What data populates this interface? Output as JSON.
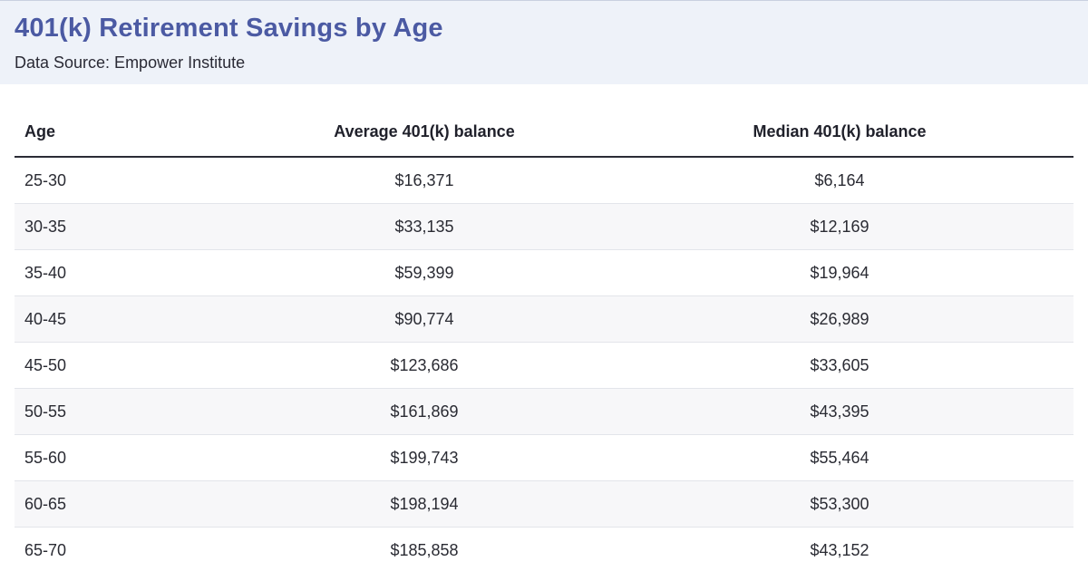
{
  "header": {
    "title": "401(k) Retirement Savings by Age",
    "subtitle": "Data Source: Empower Institute"
  },
  "chart_data": {
    "type": "table",
    "title": "401(k) Retirement Savings by Age",
    "subtitle": "Data Source: Empower Institute",
    "columns": [
      "Age",
      "Average 401(k) balance",
      "Median 401(k) balance"
    ],
    "rows": [
      [
        "25-30",
        "$16,371",
        "$6,164"
      ],
      [
        "30-35",
        "$33,135",
        "$12,169"
      ],
      [
        "35-40",
        "$59,399",
        "$19,964"
      ],
      [
        "40-45",
        "$90,774",
        "$26,989"
      ],
      [
        "45-50",
        "$123,686",
        "$33,605"
      ],
      [
        "50-55",
        "$161,869",
        "$43,395"
      ],
      [
        "55-60",
        "$199,743",
        "$55,464"
      ],
      [
        "60-65",
        "$198,194",
        "$53,300"
      ],
      [
        "65-70",
        "$185,858",
        "$43,152"
      ]
    ]
  }
}
